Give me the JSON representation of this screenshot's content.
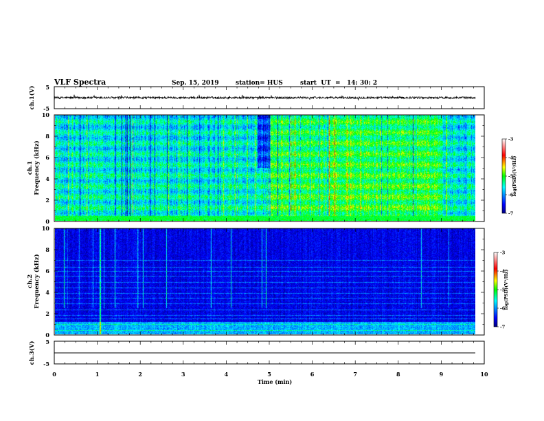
{
  "header": {
    "title": "VLF Spectra",
    "date": "Sep. 15, 2019",
    "station": "station= HUS",
    "start": "start  UT  =   14: 30: 2"
  },
  "chart_data": [
    {
      "type": "line",
      "panel": "ch1-waveform",
      "ylabel": "ch.1(V)",
      "ylim": [
        -5,
        5
      ],
      "yticks": [
        "5",
        "-5"
      ],
      "series": [
        {
          "description": "noisy trace near 0 V, amplitude about ±0.5 V",
          "baseline": 0
        }
      ]
    },
    {
      "type": "heatmap",
      "panel": "ch1-spectrogram",
      "ylabel_top": "ch.1",
      "ylabel": "Frequency (kHz)",
      "ylim": [
        0,
        10
      ],
      "yticks": [
        "0",
        "2",
        "4",
        "6",
        "8",
        "10"
      ],
      "colorbar": {
        "label": "log(PSD)(V²/Hz)",
        "range": [
          -7,
          -3
        ],
        "ticks": [
          "-3",
          "-4",
          "-5",
          "-6",
          "-7"
        ]
      },
      "features": {
        "data_end_min": 9.8,
        "bright_period_min": [
          5.0,
          9.0
        ],
        "dark_gap_min": [
          4.7,
          5.0
        ]
      }
    },
    {
      "type": "heatmap",
      "panel": "ch2-spectrogram",
      "ylabel_top": "ch.2",
      "ylabel": "Frequency (kHz)",
      "ylim": [
        0,
        10
      ],
      "yticks": [
        "0",
        "2",
        "4",
        "6",
        "8",
        "10"
      ],
      "colorbar": {
        "label": "log(PSD)(V²/Hz)",
        "range": [
          -7,
          -3
        ],
        "ticks": [
          "-3",
          "-4",
          "-5",
          "-6",
          "-7"
        ]
      },
      "features": {
        "data_end_min": 9.8,
        "impulse_min": 1.05
      }
    },
    {
      "type": "line",
      "panel": "ch3-waveform",
      "ylabel": "ch.3(V)",
      "ylim": [
        -5,
        5
      ],
      "yticks": [
        "5",
        "-5"
      ],
      "series": [
        {
          "description": "flat line",
          "baseline": 0
        }
      ]
    }
  ],
  "xaxis": {
    "label": "Time (min)",
    "ticks": [
      "0",
      "1",
      "2",
      "3",
      "4",
      "5",
      "6",
      "7",
      "8",
      "9",
      "10"
    ],
    "range": [
      0,
      10
    ]
  }
}
